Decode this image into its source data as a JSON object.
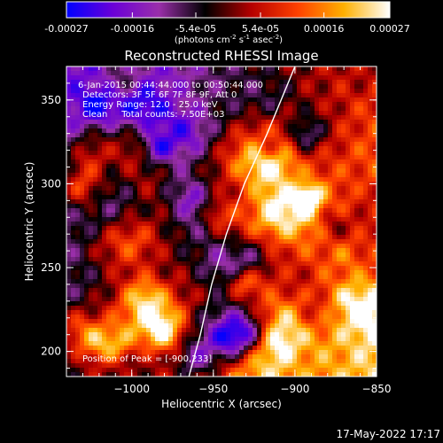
{
  "colorbar": {
    "tick_labels": [
      "-0.00027",
      "-0.00016",
      "-5.4e-05",
      "5.4e-05",
      "0.00016",
      "0.00027"
    ],
    "tick_values": [
      -0.00027,
      -0.00016,
      -5.4e-05,
      5.4e-05,
      0.00016,
      0.00027
    ],
    "range": [
      -0.00027,
      0.00027
    ],
    "units": "(photons cm",
    "units_sup1": "-2",
    "units_mid": " s",
    "units_sup2": "-1",
    "units_end": " asec",
    "units_sup3": "-2",
    "units_close": ")",
    "colors": [
      "#0000ff",
      "#6a00d8",
      "#9a2faa",
      "#000000",
      "#b50000",
      "#ff4000",
      "#ffb000",
      "#ffffff"
    ]
  },
  "chart_data": {
    "type": "heatmap",
    "title": "Reconstructed RHESSI Image",
    "xlabel": "Heliocentric X (arcsec)",
    "ylabel": "Heliocentric Y (arcsec)",
    "xlim": [
      -1040,
      -850
    ],
    "ylim": [
      185,
      370
    ],
    "x_ticks": [
      -1000,
      -950,
      -900,
      -850
    ],
    "x_tick_labels": [
      "−1000",
      "−950",
      "−900",
      "−850"
    ],
    "y_ticks": [
      200,
      250,
      300,
      350
    ],
    "y_tick_labels": [
      "200",
      "250",
      "300",
      "350"
    ],
    "limb_curve": [
      [
        -965,
        185
      ],
      [
        -958,
        210
      ],
      [
        -951,
        240
      ],
      [
        -942,
        270
      ],
      [
        -931,
        300
      ],
      [
        -917,
        330
      ],
      [
        -900,
        370
      ]
    ],
    "peak": {
      "x": -900,
      "y": 233
    },
    "annotations": [
      "6-Jan-2015 00:44:44.000 to 00:50:44.000",
      "Detectors: 3F 5F 6F 7F 8F 9F, Att 0",
      "Energy Range: 12.0 - 25.0 keV",
      "Clean     Total counts: 7.50E+03"
    ],
    "peak_label": "Position of Peak = [-900,233]"
  },
  "footer": {
    "timestamp": "17-May-2022 17:17"
  }
}
